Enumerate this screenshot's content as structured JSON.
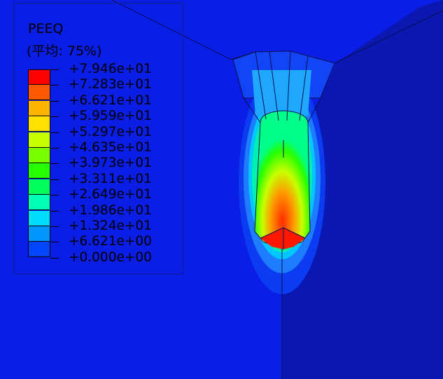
{
  "legend": {
    "title": "PEEQ",
    "subtitle": "(平均: 75%)",
    "levels": [
      {
        "label": "+7.946e+01",
        "color": "#ff0000"
      },
      {
        "label": "+7.283e+01",
        "color": "#ff5a00"
      },
      {
        "label": "+6.621e+01",
        "color": "#ffb400"
      },
      {
        "label": "+5.959e+01",
        "color": "#ffe000"
      },
      {
        "label": "+5.297e+01",
        "color": "#c8ff00"
      },
      {
        "label": "+4.635e+01",
        "color": "#78ff00"
      },
      {
        "label": "+3.973e+01",
        "color": "#28ff00"
      },
      {
        "label": "+3.311e+01",
        "color": "#00ff5a"
      },
      {
        "label": "+2.649e+01",
        "color": "#00ffb4"
      },
      {
        "label": "+1.986e+01",
        "color": "#00dcff"
      },
      {
        "label": "+1.324e+01",
        "color": "#0096ff"
      },
      {
        "label": "+6.621e+00",
        "color": "#0046ff"
      },
      {
        "label": "+0.000e+00",
        "color": ""
      }
    ]
  },
  "colors": {
    "background": "#0a1ee6",
    "right_panel": "#0a18b4",
    "edge_lines": "#0a0f50"
  }
}
